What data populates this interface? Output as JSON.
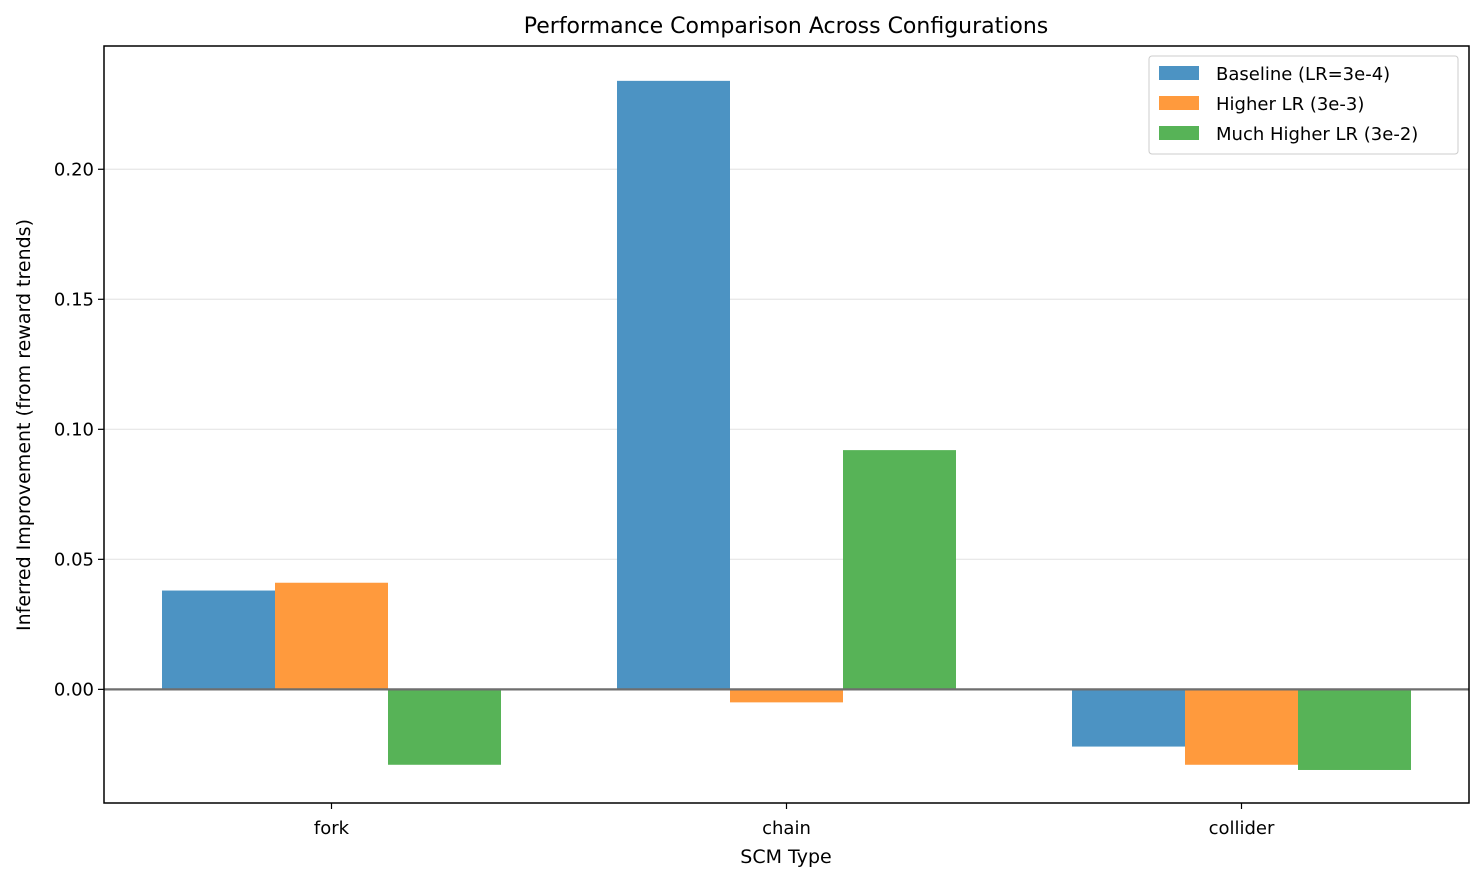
{
  "chart_data": {
    "type": "bar",
    "title": "Performance Comparison Across Configurations",
    "xlabel": "SCM Type",
    "ylabel": "Inferred Improvement (from reward trends)",
    "categories": [
      "fork",
      "chain",
      "collider"
    ],
    "series": [
      {
        "name": "Baseline (LR=3e-4)",
        "color": "#4c93c3",
        "values": [
          0.038,
          0.234,
          -0.022
        ]
      },
      {
        "name": "Higher LR (3e-3)",
        "color": "#ff9a3d",
        "values": [
          0.041,
          -0.005,
          -0.029
        ]
      },
      {
        "name": "Much Higher LR (3e-2)",
        "color": "#57b357",
        "values": [
          -0.029,
          0.092,
          -0.031
        ]
      }
    ],
    "ylim": [
      -0.0437,
      0.2474
    ],
    "yticks": [
      "0.00",
      "0.05",
      "0.10",
      "0.15",
      "0.20"
    ],
    "grid": "y",
    "zero_line": true,
    "legend_position": "top-right"
  }
}
